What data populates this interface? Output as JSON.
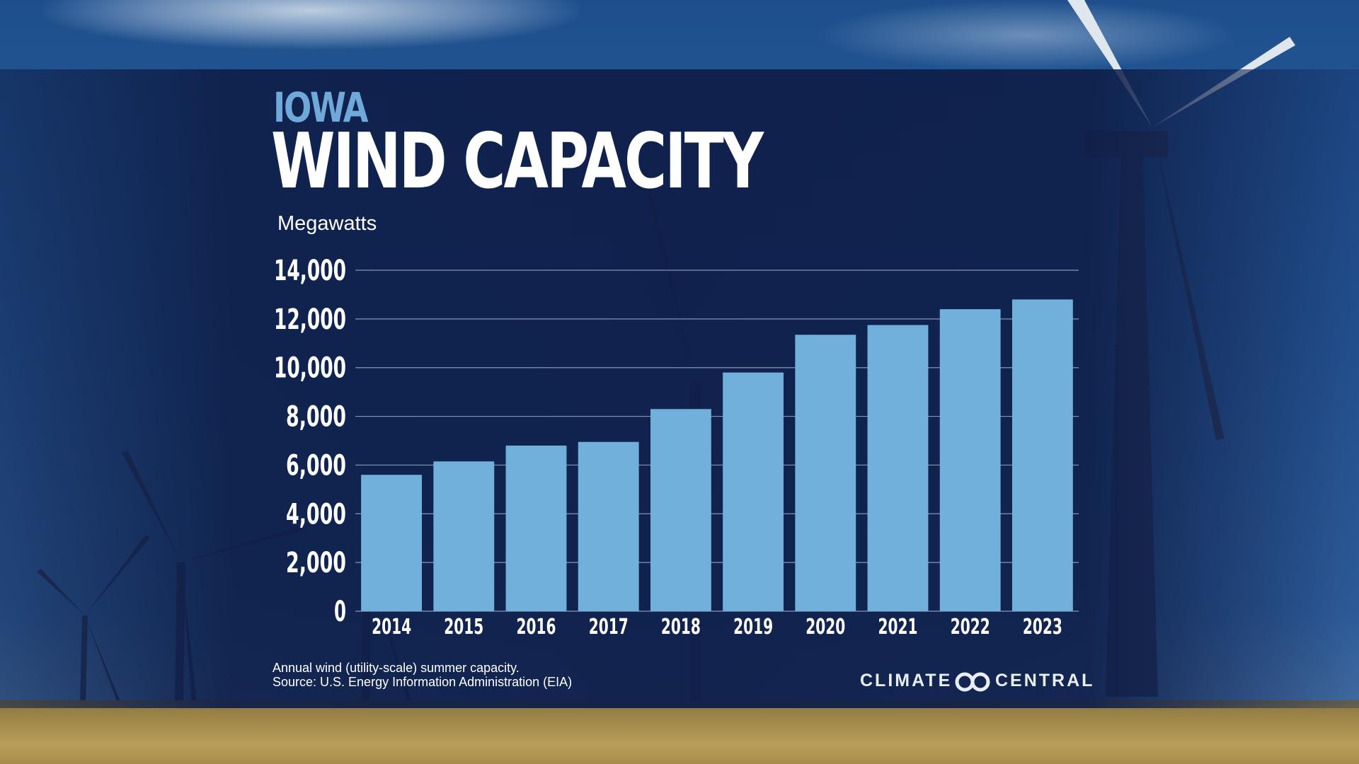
{
  "header": {
    "state": "IOWA",
    "title": "WIND CAPACITY",
    "unit": "Megawatts"
  },
  "footnote": {
    "line1": "Annual wind (utility-scale) summer capacity.",
    "line2": "Source: U.S. Energy Information Administration (EIA)"
  },
  "brand": {
    "word1": "CLIMATE",
    "word2": "CENTRAL",
    "icon": "infinity-rings-icon"
  },
  "colors": {
    "bar": "#72b0dc",
    "title_state": "#6fa8d9",
    "band": "#0e1e48",
    "gridline": "#9fb3cf"
  },
  "chart_data": {
    "type": "bar",
    "categories": [
      "2014",
      "2015",
      "2016",
      "2017",
      "2018",
      "2019",
      "2020",
      "2021",
      "2022",
      "2023"
    ],
    "values": [
      5600,
      6150,
      6800,
      6950,
      8300,
      9800,
      11350,
      11750,
      12400,
      12800
    ],
    "title": "WIND CAPACITY",
    "ylabel": "Megawatts",
    "ylim": [
      0,
      14000
    ],
    "yticks": [
      0,
      2000,
      4000,
      6000,
      8000,
      10000,
      12000,
      14000
    ],
    "ytick_labels": [
      "0",
      "2,000",
      "4,000",
      "6,000",
      "8,000",
      "10,000",
      "12,000",
      "14,000"
    ],
    "grid": true,
    "legend": "none"
  }
}
